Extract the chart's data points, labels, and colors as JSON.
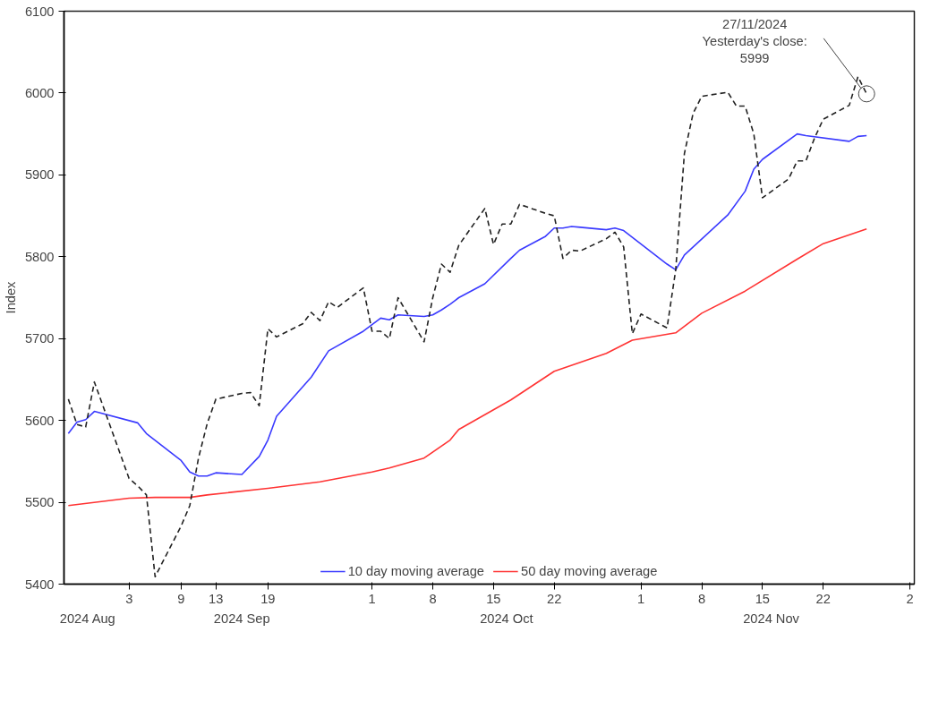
{
  "chart_data": {
    "type": "line",
    "ylabel": "Index",
    "ylim": [
      5400,
      6100
    ],
    "yticks": [
      5400,
      5500,
      5600,
      5700,
      5800,
      5900,
      6000,
      6100
    ],
    "xlim": [
      "2024-08-26T12:00",
      "2024-12-02T12:00"
    ],
    "xticks": [
      {
        "value": "2024-09-03",
        "label": "3"
      },
      {
        "value": "2024-09-09",
        "label": "9"
      },
      {
        "value": "2024-09-13",
        "label": "13"
      },
      {
        "value": "2024-09-19",
        "label": "19"
      },
      {
        "value": "2024-10-01",
        "label": "1"
      },
      {
        "value": "2024-10-08",
        "label": "8"
      },
      {
        "value": "2024-10-15",
        "label": "15"
      },
      {
        "value": "2024-10-22",
        "label": "22"
      },
      {
        "value": "2024-11-01",
        "label": "1"
      },
      {
        "value": "2024-11-08",
        "label": "8"
      },
      {
        "value": "2024-11-15",
        "label": "15"
      },
      {
        "value": "2024-11-22",
        "label": "22"
      },
      {
        "value": "2024-12-02",
        "label": "2"
      }
    ],
    "grid": false,
    "legend": "bottom",
    "marker": "none",
    "series": [
      {
        "name": "10 day moving average",
        "color": "#3a3aff",
        "line_style": "solid",
        "x": [
          "2024-08-27",
          "2024-08-28",
          "2024-08-29",
          "2024-08-30",
          "2024-09-04",
          "2024-09-05",
          "2024-09-09",
          "2024-09-10",
          "2024-09-11",
          "2024-09-12",
          "2024-09-13",
          "2024-09-16",
          "2024-09-18",
          "2024-09-19",
          "2024-09-20",
          "2024-09-24",
          "2024-09-26",
          "2024-09-30",
          "2024-10-02",
          "2024-10-03",
          "2024-10-04",
          "2024-10-07",
          "2024-10-08",
          "2024-10-09",
          "2024-10-10",
          "2024-10-11",
          "2024-10-14",
          "2024-10-17",
          "2024-10-18",
          "2024-10-21",
          "2024-10-22",
          "2024-10-23",
          "2024-10-24",
          "2024-10-25",
          "2024-10-28",
          "2024-10-29",
          "2024-10-30",
          "2024-11-04",
          "2024-11-05",
          "2024-11-06",
          "2024-11-11",
          "2024-11-13",
          "2024-11-14",
          "2024-11-15",
          "2024-11-19",
          "2024-11-20",
          "2024-11-25",
          "2024-11-26",
          "2024-11-27"
        ],
        "values": [
          5584,
          5598,
          5601,
          5611,
          5597,
          5584,
          5551,
          5537,
          5532,
          5532,
          5536,
          5534,
          5556,
          5576,
          5605,
          5653,
          5685,
          5709,
          5725,
          5723,
          5729,
          5727,
          5729,
          5735,
          5742,
          5750,
          5767,
          5798,
          5808,
          5825,
          5835,
          5835,
          5837,
          5836,
          5833,
          5835,
          5832,
          5791,
          5784,
          5802,
          5851,
          5880,
          5907,
          5919,
          5950,
          5948,
          5941,
          5947,
          5948
        ]
      },
      {
        "name": "50 day moving average",
        "color": "#ff3333",
        "line_style": "solid",
        "x": [
          "2024-08-27",
          "2024-09-03",
          "2024-09-06",
          "2024-09-10",
          "2024-09-12",
          "2024-09-19",
          "2024-09-25",
          "2024-10-01",
          "2024-10-03",
          "2024-10-07",
          "2024-10-10",
          "2024-10-11",
          "2024-10-17",
          "2024-10-22",
          "2024-10-28",
          "2024-10-31",
          "2024-11-05",
          "2024-11-08",
          "2024-11-13",
          "2024-11-19",
          "2024-11-22",
          "2024-11-27"
        ],
        "values": [
          5496,
          5505,
          5506,
          5506,
          5509,
          5517,
          5525,
          5537,
          5542,
          5554,
          5576,
          5589,
          5625,
          5660,
          5682,
          5698,
          5707,
          5731,
          5758,
          5797,
          5816,
          5834
        ]
      },
      {
        "color": "#222222",
        "line_style": "dashed",
        "x": [
          "2024-08-27",
          "2024-08-28",
          "2024-08-29",
          "2024-08-30",
          "2024-09-03",
          "2024-09-04",
          "2024-09-05",
          "2024-09-06",
          "2024-09-09",
          "2024-09-10",
          "2024-09-11",
          "2024-09-12",
          "2024-09-13",
          "2024-09-16",
          "2024-09-17",
          "2024-09-18",
          "2024-09-19",
          "2024-09-20",
          "2024-09-23",
          "2024-09-24",
          "2024-09-25",
          "2024-09-26",
          "2024-09-27",
          "2024-09-30",
          "2024-10-01",
          "2024-10-02",
          "2024-10-03",
          "2024-10-04",
          "2024-10-07",
          "2024-10-08",
          "2024-10-09",
          "2024-10-10",
          "2024-10-11",
          "2024-10-14",
          "2024-10-15",
          "2024-10-16",
          "2024-10-17",
          "2024-10-18",
          "2024-10-21",
          "2024-10-22",
          "2024-10-23",
          "2024-10-24",
          "2024-10-25",
          "2024-10-28",
          "2024-10-29",
          "2024-10-30",
          "2024-10-31",
          "2024-11-01",
          "2024-11-04",
          "2024-11-05",
          "2024-11-06",
          "2024-11-07",
          "2024-11-08",
          "2024-11-11",
          "2024-11-12",
          "2024-11-13",
          "2024-11-14",
          "2024-11-15",
          "2024-11-18",
          "2024-11-19",
          "2024-11-20",
          "2024-11-21",
          "2024-11-22",
          "2024-11-25",
          "2024-11-26",
          "2024-11-27"
        ],
        "values": [
          5626,
          5595,
          5592,
          5647,
          5529,
          5520,
          5509,
          5409,
          5471,
          5496,
          5554,
          5596,
          5626,
          5633,
          5634,
          5618,
          5712,
          5702,
          5718,
          5732,
          5722,
          5745,
          5738,
          5762,
          5709,
          5709,
          5700,
          5750,
          5696,
          5750,
          5791,
          5781,
          5814,
          5859,
          5815,
          5840,
          5840,
          5864,
          5853,
          5850,
          5798,
          5808,
          5807,
          5822,
          5830,
          5812,
          5706,
          5730,
          5713,
          5784,
          5926,
          5975,
          5996,
          6001,
          5984,
          5984,
          5950,
          5872,
          5895,
          5917,
          5917,
          5945,
          5968,
          5985,
          6020,
          5999
        ]
      }
    ],
    "annotations": [
      {
        "text": "27/11/2024\nYesterday's close:\n5999",
        "x": "2024-11-27",
        "y": 5999
      },
      "2024 Aug",
      "2024 Sep",
      "2024 Oct",
      "2024 Nov"
    ]
  }
}
